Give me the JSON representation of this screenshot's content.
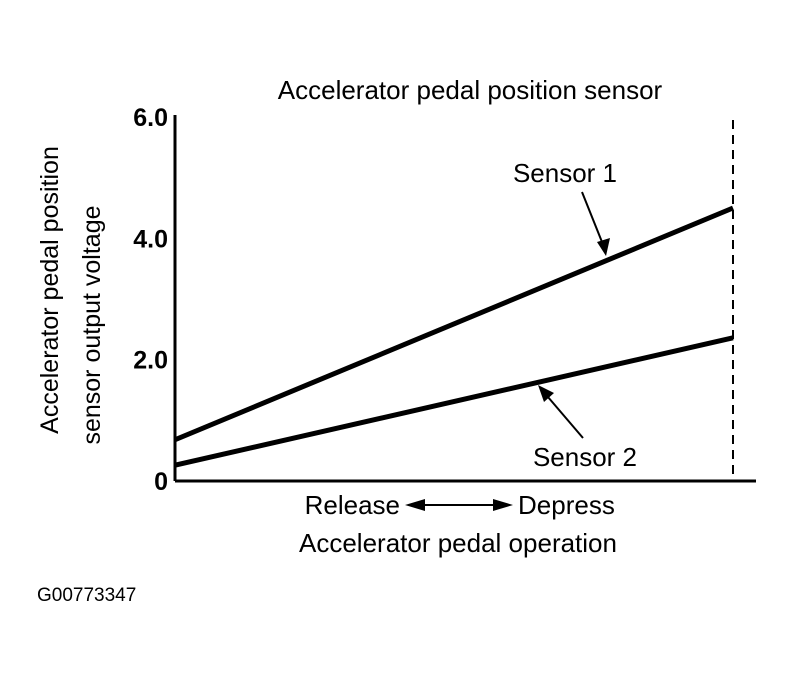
{
  "chart_data": {
    "type": "line",
    "title": "Accelerator pedal position sensor",
    "ylabel_lines": [
      "Accelerator pedal position",
      "sensor output voltage"
    ],
    "xlabel": "Accelerator pedal operation",
    "x_endpoints": {
      "left": "Release",
      "right": "Depress"
    },
    "ylim": [
      0,
      6.0
    ],
    "xlim": [
      0,
      1
    ],
    "yticks": [
      {
        "v": 0,
        "label": "0"
      },
      {
        "v": 2.0,
        "label": "2.0"
      },
      {
        "v": 4.0,
        "label": "4.0"
      },
      {
        "v": 6.0,
        "label": "6.0"
      }
    ],
    "series": [
      {
        "name": "Sensor 1",
        "x": [
          0,
          1
        ],
        "y": [
          0.68,
          4.5
        ]
      },
      {
        "name": "Sensor 2",
        "x": [
          0,
          1
        ],
        "y": [
          0.26,
          2.36
        ]
      }
    ],
    "full_depress_marker": "dashed vertical line",
    "grid": false
  },
  "figure_id": "G00773347",
  "colors": {
    "line": "#000000",
    "background": "#ffffff"
  }
}
